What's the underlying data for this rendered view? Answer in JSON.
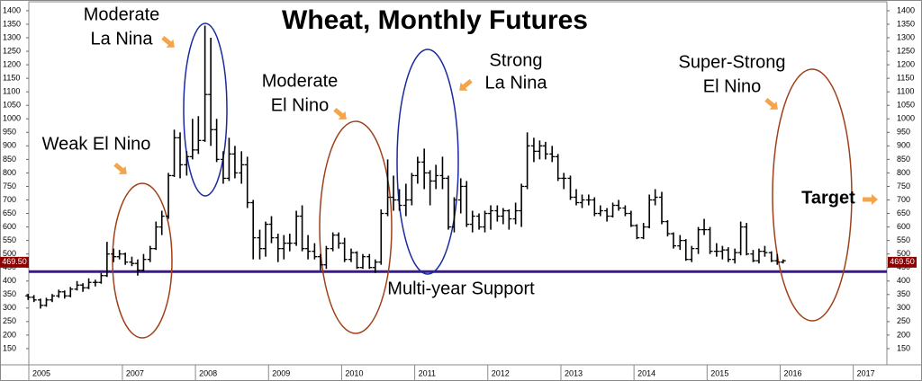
{
  "chart_data": {
    "type": "ohlc",
    "title": "Wheat, Monthly Futures",
    "x": [
      2005.71,
      2005.79,
      2005.88,
      2005.96,
      2006.04,
      2006.13,
      2006.21,
      2006.29,
      2006.38,
      2006.46,
      2006.54,
      2006.63,
      2006.71,
      2006.79,
      2006.88,
      2006.96,
      2007.04,
      2007.13,
      2007.21,
      2007.29,
      2007.38,
      2007.46,
      2007.54,
      2007.63,
      2007.71,
      2007.79,
      2007.88,
      2007.96,
      2008.04,
      2008.13,
      2008.21,
      2008.29,
      2008.38,
      2008.46,
      2008.54,
      2008.63,
      2008.71,
      2008.79,
      2008.88,
      2008.96,
      2009.04,
      2009.13,
      2009.21,
      2009.29,
      2009.38,
      2009.46,
      2009.54,
      2009.63,
      2009.71,
      2009.79,
      2009.88,
      2009.96,
      2010.04,
      2010.13,
      2010.21,
      2010.29,
      2010.38,
      2010.46,
      2010.54,
      2010.63,
      2010.71,
      2010.79,
      2010.88,
      2010.96,
      2011.04,
      2011.13,
      2011.21,
      2011.29,
      2011.38,
      2011.46,
      2011.54,
      2011.63,
      2011.71,
      2011.79,
      2011.88,
      2011.96,
      2012.04,
      2012.13,
      2012.21,
      2012.29,
      2012.38,
      2012.46,
      2012.54,
      2012.63,
      2012.71,
      2012.79,
      2012.88,
      2012.96,
      2013.04,
      2013.13,
      2013.21,
      2013.29,
      2013.38,
      2013.46,
      2013.54,
      2013.63,
      2013.71,
      2013.79,
      2013.88,
      2013.96,
      2014.04,
      2014.13,
      2014.21,
      2014.29,
      2014.38,
      2014.46,
      2014.54,
      2014.63,
      2014.71,
      2014.79,
      2014.88,
      2014.96,
      2015.04,
      2015.13,
      2015.21,
      2015.29,
      2015.38,
      2015.46,
      2015.54,
      2015.63,
      2015.71,
      2015.79,
      2015.88,
      2015.96,
      2016.04
    ],
    "open": [
      345,
      340,
      330,
      310,
      330,
      345,
      360,
      345,
      370,
      385,
      375,
      395,
      395,
      420,
      500,
      490,
      500,
      470,
      465,
      440,
      480,
      520,
      600,
      640,
      790,
      930,
      830,
      860,
      885,
      920,
      1090,
      960,
      850,
      780,
      870,
      800,
      830,
      690,
      560,
      520,
      610,
      560,
      520,
      540,
      540,
      640,
      520,
      510,
      490,
      460,
      520,
      570,
      540,
      480,
      505,
      450,
      490,
      450,
      470,
      650,
      710,
      700,
      680,
      700,
      790,
      840,
      800,
      770,
      790,
      780,
      600,
      700,
      750,
      610,
      640,
      600,
      650,
      660,
      640,
      660,
      630,
      660,
      750,
      900,
      880,
      900,
      870,
      860,
      780,
      780,
      710,
      690,
      700,
      700,
      650,
      660,
      640,
      680,
      670,
      650,
      605,
      560,
      600,
      700,
      710,
      620,
      575,
      530,
      550,
      480,
      520,
      590,
      590,
      510,
      510,
      515,
      480,
      505,
      600,
      500,
      475,
      510,
      505,
      475,
      470
    ],
    "high": [
      352,
      348,
      335,
      338,
      352,
      368,
      365,
      378,
      400,
      392,
      410,
      405,
      430,
      545,
      520,
      515,
      505,
      490,
      480,
      500,
      530,
      620,
      660,
      800,
      960,
      950,
      880,
      1000,
      1010,
      1345,
      1300,
      1000,
      880,
      930,
      900,
      880,
      860,
      700,
      590,
      620,
      640,
      575,
      570,
      575,
      660,
      680,
      570,
      540,
      500,
      530,
      580,
      580,
      560,
      520,
      510,
      500,
      500,
      480,
      665,
      850,
      790,
      740,
      760,
      800,
      860,
      890,
      810,
      830,
      860,
      790,
      710,
      780,
      770,
      660,
      650,
      660,
      680,
      680,
      670,
      665,
      690,
      760,
      950,
      930,
      920,
      915,
      900,
      870,
      800,
      790,
      740,
      720,
      720,
      710,
      680,
      670,
      690,
      700,
      680,
      660,
      610,
      615,
      720,
      740,
      730,
      625,
      580,
      570,
      555,
      530,
      600,
      630,
      600,
      540,
      530,
      525,
      520,
      620,
      615,
      515,
      520,
      530,
      510,
      500,
      480
    ],
    "low": [
      330,
      322,
      298,
      305,
      322,
      338,
      335,
      340,
      365,
      360,
      370,
      380,
      390,
      415,
      470,
      480,
      460,
      455,
      420,
      435,
      470,
      515,
      570,
      630,
      785,
      780,
      790,
      850,
      870,
      915,
      900,
      840,
      760,
      770,
      780,
      760,
      670,
      480,
      480,
      490,
      540,
      470,
      480,
      510,
      530,
      510,
      480,
      480,
      440,
      445,
      510,
      520,
      470,
      470,
      445,
      445,
      445,
      430,
      460,
      640,
      660,
      660,
      640,
      680,
      760,
      740,
      680,
      740,
      740,
      590,
      580,
      650,
      600,
      580,
      590,
      580,
      590,
      620,
      610,
      590,
      610,
      600,
      740,
      840,
      850,
      850,
      840,
      770,
      740,
      700,
      680,
      670,
      680,
      640,
      640,
      620,
      635,
      660,
      640,
      600,
      555,
      555,
      595,
      680,
      610,
      565,
      520,
      515,
      475,
      470,
      500,
      570,
      500,
      490,
      480,
      470,
      465,
      495,
      495,
      470,
      465,
      490,
      470,
      460,
      465
    ],
    "close": [
      340,
      330,
      310,
      330,
      345,
      360,
      345,
      370,
      385,
      375,
      395,
      395,
      420,
      500,
      490,
      500,
      470,
      465,
      440,
      480,
      520,
      600,
      640,
      790,
      930,
      830,
      860,
      885,
      920,
      1090,
      960,
      850,
      780,
      870,
      800,
      830,
      690,
      560,
      520,
      610,
      560,
      520,
      540,
      540,
      640,
      520,
      510,
      490,
      460,
      520,
      570,
      540,
      480,
      505,
      450,
      490,
      450,
      470,
      650,
      710,
      700,
      680,
      700,
      790,
      840,
      800,
      770,
      790,
      780,
      600,
      700,
      750,
      610,
      640,
      600,
      650,
      660,
      640,
      660,
      630,
      660,
      750,
      900,
      880,
      900,
      870,
      860,
      780,
      780,
      710,
      690,
      700,
      700,
      650,
      660,
      640,
      680,
      670,
      650,
      605,
      560,
      600,
      700,
      710,
      620,
      575,
      530,
      550,
      480,
      520,
      590,
      590,
      510,
      510,
      515,
      480,
      505,
      600,
      500,
      475,
      510,
      505,
      475,
      470,
      475
    ],
    "color": "#000000",
    "ylim": [
      90,
      1433
    ],
    "yticks": [
      150,
      200,
      250,
      300,
      350,
      400,
      450,
      500,
      550,
      600,
      650,
      700,
      750,
      800,
      850,
      900,
      950,
      1000,
      1050,
      1100,
      1150,
      1200,
      1250,
      1300,
      1350,
      1400
    ],
    "xlim": [
      2005.72,
      2017.46
    ],
    "xticks": [
      {
        "value": 2005.72,
        "label": "2005"
      },
      2007,
      2008,
      2009,
      2010,
      2011,
      2012,
      2013,
      2014,
      2015,
      2016,
      2017
    ],
    "last_price": {
      "value": 469.5,
      "label": "469.50"
    },
    "support_level": 435,
    "support_color": "#3a1a8a",
    "support_label": "Multi-year Support",
    "annotations": [
      {
        "lines": [
          "Moderate",
          "La Nina"
        ]
      },
      {
        "lines": [
          "Weak El Nino"
        ]
      },
      {
        "lines": [
          "Moderate",
          "El Nino"
        ]
      },
      {
        "lines": [
          "Strong",
          "La Nina"
        ]
      },
      {
        "lines": [
          "Super-Strong",
          "El Nino"
        ]
      },
      {
        "lines": [
          "Target"
        ]
      }
    ]
  }
}
